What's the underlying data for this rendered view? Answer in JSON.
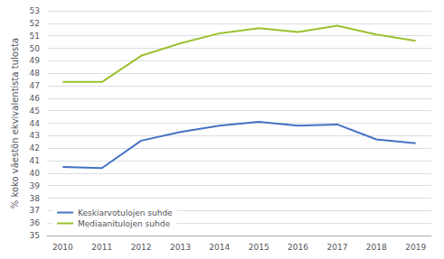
{
  "chart_data": {
    "type": "line",
    "x": [
      2010,
      2011,
      2012,
      2013,
      2014,
      2015,
      2016,
      2017,
      2018,
      2019
    ],
    "series": [
      {
        "name": "Keskiarvotulojen suhde",
        "color": "#4472c4",
        "values": [
          40.5,
          40.4,
          42.6,
          43.3,
          43.8,
          44.1,
          43.8,
          43.9,
          42.7,
          42.4
        ]
      },
      {
        "name": "Mediaanitulojen suhde",
        "color": "#9dc130",
        "values": [
          47.3,
          47.3,
          49.4,
          50.4,
          51.2,
          51.6,
          51.3,
          51.8,
          51.1,
          50.6
        ]
      }
    ],
    "ylabel": "% koko väestön ekvivalentista tulosta",
    "xlim": [
      2009.6,
      2019.4
    ],
    "xticks": [
      2010,
      2011,
      2012,
      2013,
      2014,
      2015,
      2016,
      2017,
      2018,
      2019
    ],
    "ylim": [
      35,
      53
    ],
    "yticks": [
      35,
      36,
      37,
      38,
      39,
      40,
      41,
      42,
      43,
      44,
      45,
      46,
      47,
      48,
      49,
      50,
      51,
      52,
      53
    ],
    "grid": true,
    "legend": "lower left"
  }
}
